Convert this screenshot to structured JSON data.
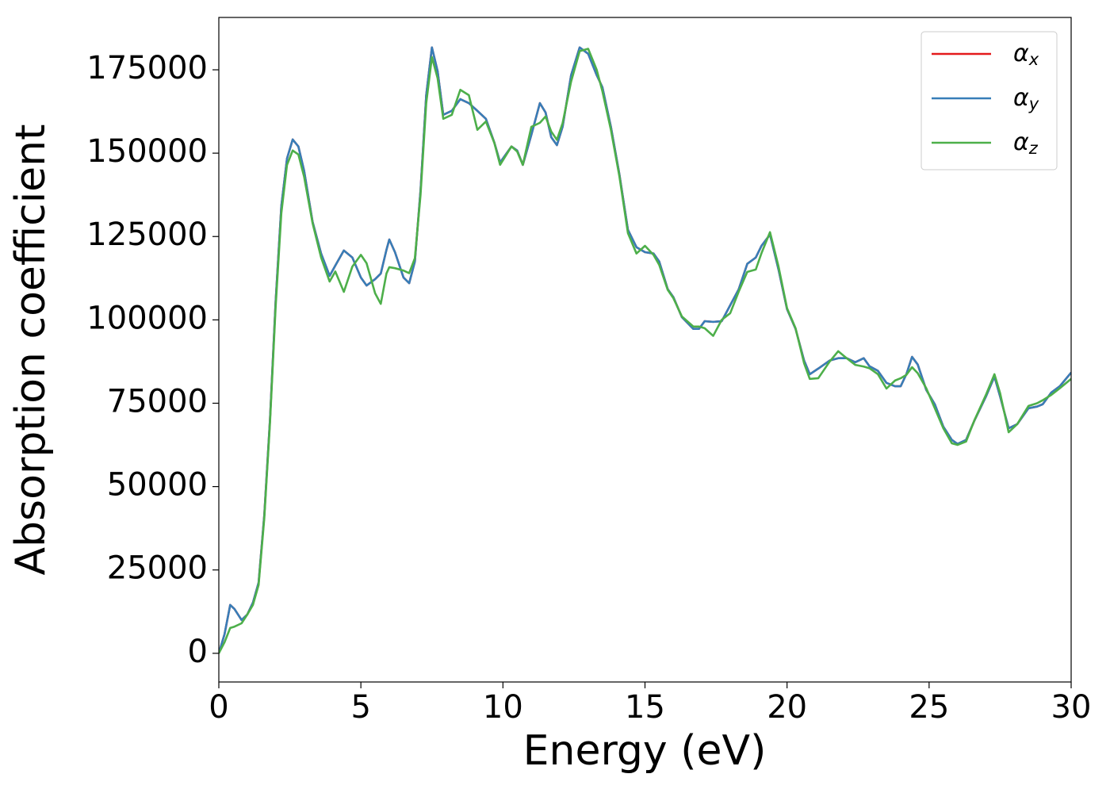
{
  "chart_data": {
    "type": "line",
    "xlabel": "Energy (eV)",
    "ylabel": "Absorption coefficient",
    "xlim": [
      0,
      30
    ],
    "ylim": [
      -8600,
      190700
    ],
    "xticks": [
      0,
      5,
      10,
      15,
      20,
      25,
      30
    ],
    "yticks": [
      0,
      25000,
      50000,
      75000,
      100000,
      125000,
      150000,
      175000
    ],
    "grid": false,
    "legend": "upper right",
    "x": [
      0,
      0.2,
      0.4,
      0.55,
      0.8,
      1.0,
      1.2,
      1.4,
      1.6,
      1.8,
      2.0,
      2.2,
      2.4,
      2.6,
      2.8,
      3.0,
      3.3,
      3.6,
      3.9,
      4.1,
      4.4,
      4.7,
      5.0,
      5.2,
      5.5,
      5.7,
      5.9,
      6.0,
      6.2,
      6.5,
      6.7,
      6.9,
      7.1,
      7.3,
      7.5,
      7.7,
      7.9,
      8.2,
      8.5,
      8.8,
      9.1,
      9.4,
      9.7,
      9.9,
      10.3,
      10.5,
      10.7,
      11.0,
      11.3,
      11.5,
      11.7,
      11.9,
      12.1,
      12.4,
      12.7,
      13.0,
      13.3,
      13.5,
      13.8,
      14.1,
      14.4,
      14.7,
      15.0,
      15.3,
      15.5,
      15.8,
      16.0,
      16.3,
      16.7,
      16.9,
      17.1,
      17.4,
      17.7,
      18.0,
      18.3,
      18.6,
      18.9,
      19.1,
      19.4,
      19.7,
      20.0,
      20.3,
      20.6,
      20.8,
      21.1,
      21.5,
      21.8,
      22.1,
      22.4,
      22.7,
      22.9,
      23.2,
      23.5,
      23.8,
      24.0,
      24.2,
      24.4,
      24.6,
      24.9,
      25.2,
      25.5,
      25.8,
      26.0,
      26.3,
      26.6,
      27.0,
      27.3,
      27.5,
      27.8,
      28.1,
      28.5,
      28.8,
      29.0,
      29.3,
      29.6,
      30.0
    ],
    "series": [
      {
        "name": "αx",
        "color": "#e41a1c",
        "values": [
          0,
          5700,
          14500,
          13300,
          10000,
          11600,
          15200,
          21200,
          41400,
          70000,
          105600,
          134100,
          148400,
          154100,
          152000,
          144800,
          129400,
          119900,
          113200,
          116300,
          120800,
          118700,
          112700,
          110300,
          112200,
          113900,
          121000,
          124100,
          120300,
          112700,
          111000,
          117500,
          138900,
          167400,
          181700,
          174600,
          161500,
          162700,
          166200,
          165000,
          162700,
          160300,
          153100,
          147200,
          152000,
          150800,
          146500,
          155500,
          165000,
          162200,
          154800,
          152400,
          157900,
          173400,
          181700,
          179800,
          173400,
          169800,
          157900,
          143600,
          127000,
          121800,
          120300,
          119900,
          117500,
          109200,
          106800,
          100800,
          97300,
          97300,
          99600,
          99400,
          99600,
          104400,
          109200,
          116800,
          118700,
          122200,
          125600,
          115100,
          103200,
          97300,
          87800,
          83700,
          85400,
          87800,
          88500,
          88500,
          87300,
          88500,
          86100,
          84700,
          81100,
          80100,
          80100,
          83700,
          88900,
          86600,
          79000,
          74700,
          68000,
          64000,
          62800,
          64000,
          69900,
          77000,
          83000,
          77000,
          67500,
          68700,
          73500,
          74000,
          74700,
          78200,
          80100,
          84200
        ]
      },
      {
        "name": "αy",
        "color": "#377eb8",
        "values": [
          0,
          5700,
          14500,
          13300,
          10000,
          11600,
          15200,
          21200,
          41400,
          70000,
          105600,
          134100,
          148400,
          154100,
          152000,
          144800,
          129400,
          119900,
          113200,
          116300,
          120800,
          118700,
          112700,
          110300,
          112200,
          113900,
          121000,
          124100,
          120300,
          112700,
          111000,
          117500,
          138900,
          167400,
          181700,
          174600,
          161500,
          162700,
          166200,
          165000,
          162700,
          160300,
          153100,
          147200,
          152000,
          150800,
          146500,
          155500,
          165000,
          162200,
          154800,
          152400,
          157900,
          173400,
          181700,
          179800,
          173400,
          169800,
          157900,
          143600,
          127000,
          121800,
          120300,
          119900,
          117500,
          109200,
          106800,
          100800,
          97300,
          97300,
          99600,
          99400,
          99600,
          104400,
          109200,
          116800,
          118700,
          122200,
          125600,
          115100,
          103200,
          97300,
          87800,
          83700,
          85400,
          87800,
          88500,
          88500,
          87300,
          88500,
          86100,
          84700,
          81100,
          80100,
          80100,
          83700,
          88900,
          86600,
          79000,
          74700,
          68000,
          64000,
          62800,
          64000,
          69900,
          77000,
          83000,
          77000,
          67500,
          68700,
          73500,
          74000,
          74700,
          78200,
          80100,
          84200
        ]
      },
      {
        "name": "αz",
        "color": "#4daf4a",
        "values": [
          0,
          3300,
          7600,
          8000,
          9000,
          11600,
          14500,
          20500,
          40500,
          69000,
          104000,
          132000,
          146500,
          150800,
          149600,
          143000,
          129000,
          118700,
          111500,
          114500,
          108400,
          116000,
          119500,
          117000,
          108000,
          104800,
          113900,
          115800,
          115500,
          114800,
          114000,
          118500,
          137500,
          165000,
          178800,
          172500,
          160300,
          161500,
          169000,
          167400,
          157000,
          159500,
          153000,
          146500,
          152000,
          150500,
          146500,
          157900,
          159100,
          161000,
          156500,
          154000,
          159000,
          171500,
          180600,
          181300,
          175000,
          168600,
          157000,
          143000,
          126000,
          119900,
          122200,
          119500,
          116500,
          109000,
          106500,
          101000,
          98000,
          98000,
          97500,
          95200,
          100000,
          102000,
          108500,
          114400,
          115100,
          120000,
          126300,
          116000,
          103500,
          97500,
          87000,
          82300,
          82500,
          87500,
          90600,
          88500,
          86500,
          86000,
          85500,
          83700,
          79400,
          81800,
          82500,
          83500,
          85800,
          84000,
          79500,
          73500,
          67500,
          63000,
          62500,
          63500,
          70000,
          77500,
          83700,
          78000,
          66300,
          68700,
          74200,
          75000,
          75900,
          77500,
          79500,
          82300
        ]
      }
    ]
  }
}
